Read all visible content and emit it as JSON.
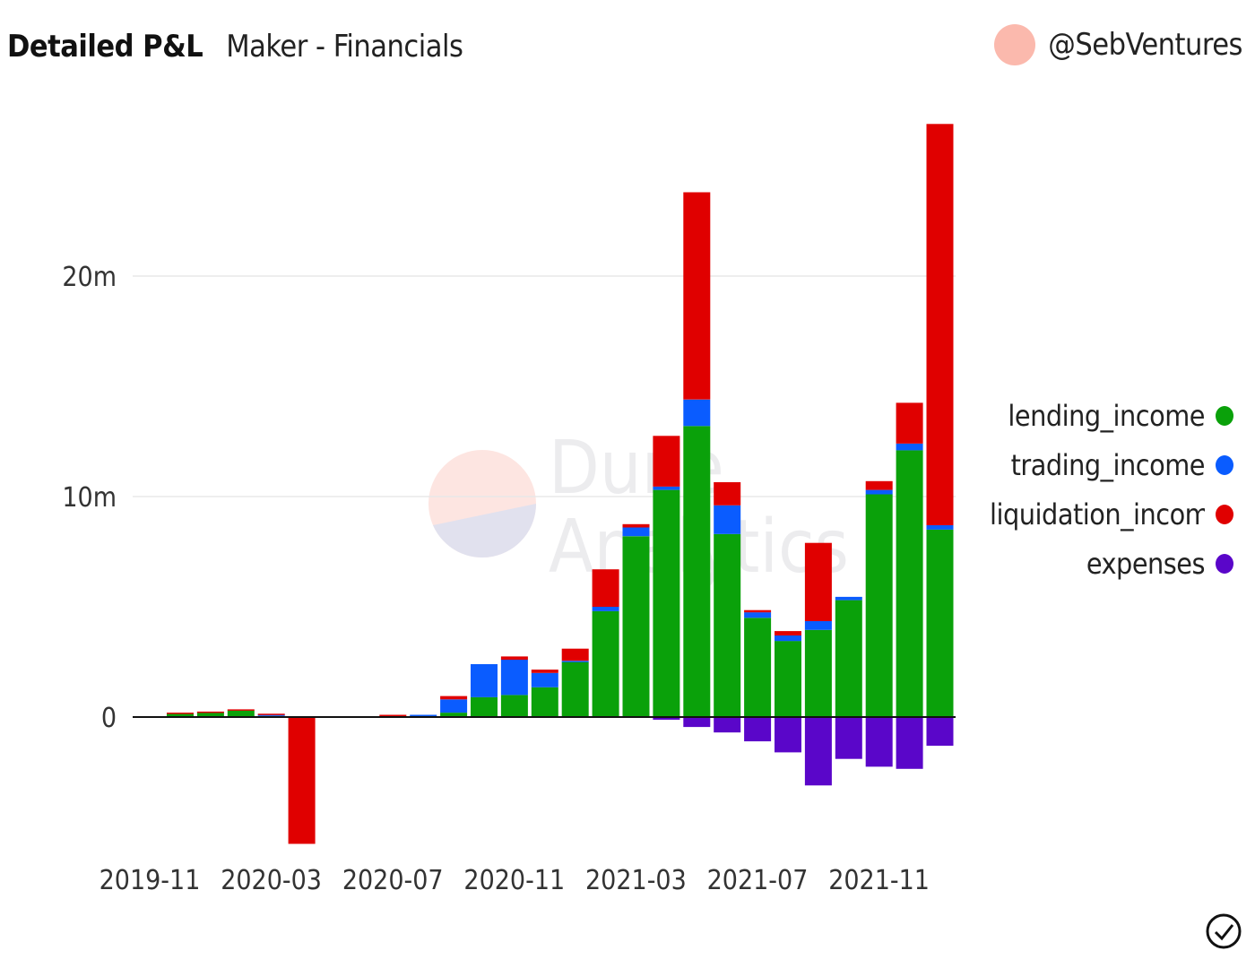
{
  "header": {
    "title": "Detailed P&L",
    "subtitle": "Maker - Financials"
  },
  "user": {
    "handle": "@SebVentures",
    "avatar_color": "#fbb9ad"
  },
  "watermark": {
    "line1": "Dune",
    "line2": "Analytics"
  },
  "chart_data": {
    "type": "bar",
    "stacked": true,
    "title": "Detailed P&L",
    "xlabel": "",
    "ylabel": "",
    "ylim": [
      -6.0,
      27.0
    ],
    "y_unit": "m",
    "yticks": [
      {
        "value": 0,
        "label": "0"
      },
      {
        "value": 10,
        "label": "10m"
      },
      {
        "value": 20,
        "label": "20m"
      }
    ],
    "grid": true,
    "legend_position": "right",
    "categories": [
      "2019-11",
      "2019-12",
      "2020-01",
      "2020-02",
      "2020-03",
      "2020-04",
      "2020-05",
      "2020-06",
      "2020-07",
      "2020-08",
      "2020-09",
      "2020-10",
      "2020-11",
      "2020-12",
      "2021-01",
      "2021-02",
      "2021-03",
      "2021-04",
      "2021-05",
      "2021-06",
      "2021-07",
      "2021-08",
      "2021-09",
      "2021-10",
      "2021-11",
      "2021-12",
      "2022-01"
    ],
    "xtick_labels": [
      "2019-11",
      "2020-03",
      "2020-07",
      "2020-11",
      "2021-03",
      "2021-07",
      "2021-11"
    ],
    "series": [
      {
        "name": "lending_income",
        "color": "#0aa10a",
        "values": [
          0.15,
          0.22,
          0.3,
          0.05,
          0,
          0,
          0,
          0.02,
          0.02,
          0.2,
          0.9,
          1.0,
          1.35,
          2.5,
          4.8,
          8.2,
          10.3,
          13.2,
          8.3,
          4.5,
          3.45,
          3.95,
          5.3,
          10.1,
          12.1,
          8.5,
          0
        ]
      },
      {
        "name": "trading_income",
        "color": "#0a5cff",
        "values": [
          0,
          0,
          0,
          0.08,
          0,
          0,
          0,
          0,
          0.08,
          0.6,
          1.5,
          1.6,
          0.65,
          0.05,
          0.2,
          0.4,
          0.15,
          1.2,
          1.3,
          0.25,
          0.25,
          0.4,
          0.15,
          0.2,
          0.3,
          0.2,
          0
        ]
      },
      {
        "name": "liquidation_income",
        "color": "#e00000",
        "values": [
          0.05,
          0.03,
          0.05,
          0.02,
          -5.75,
          0,
          0,
          0.08,
          0,
          0.15,
          0,
          0.15,
          0.15,
          0.55,
          1.7,
          0.15,
          2.3,
          9.4,
          1.05,
          0.1,
          0.2,
          3.55,
          0,
          0.4,
          1.85,
          18.2,
          0
        ]
      },
      {
        "name": "expenses",
        "color": "#5a06c9",
        "values": [
          0,
          0,
          0,
          0,
          0,
          0,
          0,
          0,
          0,
          0,
          0,
          0,
          0,
          0,
          0,
          0,
          -0.12,
          -0.45,
          -0.7,
          -1.1,
          -1.6,
          -3.1,
          -1.9,
          -2.25,
          -2.35,
          -1.3,
          0
        ]
      }
    ]
  }
}
